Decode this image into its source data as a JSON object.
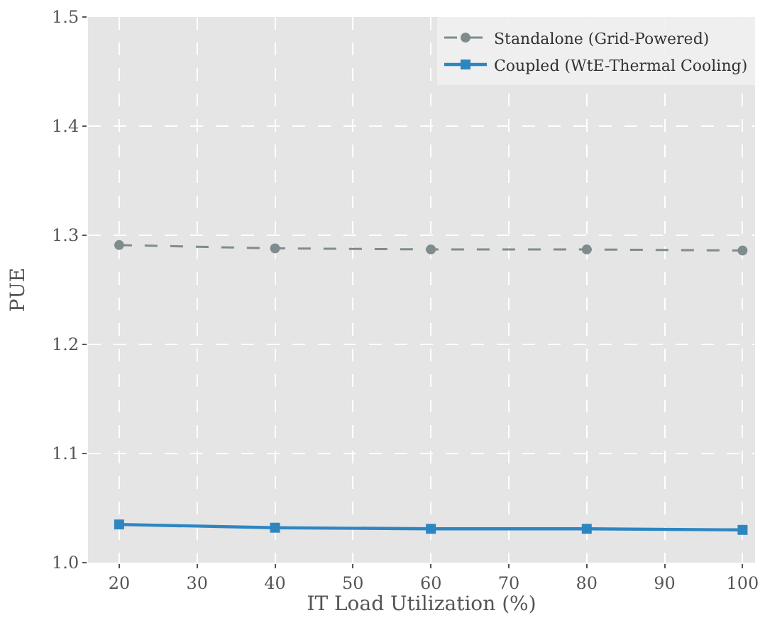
{
  "chart_data": {
    "type": "line",
    "xlabel": "IT Load Utilization (%)",
    "ylabel": "PUE",
    "x": [
      20,
      40,
      60,
      80,
      100
    ],
    "series": [
      {
        "name": "Standalone (Grid-Powered)",
        "color": "#7f8c8d",
        "values": [
          1.291,
          1.288,
          1.287,
          1.287,
          1.286
        ],
        "line_style": "dashed",
        "marker": "circle"
      },
      {
        "name": "Coupled (WtE-Thermal Cooling)",
        "color": "#2e86c1",
        "values": [
          1.035,
          1.032,
          1.031,
          1.031,
          1.03
        ],
        "line_style": "solid",
        "marker": "square"
      }
    ],
    "xlim": [
      16,
      101.6
    ],
    "xticks": [
      20,
      30,
      40,
      50,
      60,
      70,
      80,
      90,
      100
    ],
    "ylim": [
      1.0,
      1.5
    ],
    "yticks": [
      {
        "value": 1.0,
        "label": "1.0"
      },
      {
        "value": 1.1,
        "label": "1.1"
      },
      {
        "value": 1.2,
        "label": "1.2"
      },
      {
        "value": 1.3,
        "label": "1.3"
      },
      {
        "value": 1.4,
        "label": "1.4"
      },
      {
        "value": 1.5,
        "label": "1.5"
      }
    ],
    "grid": true,
    "legend": "top right"
  }
}
